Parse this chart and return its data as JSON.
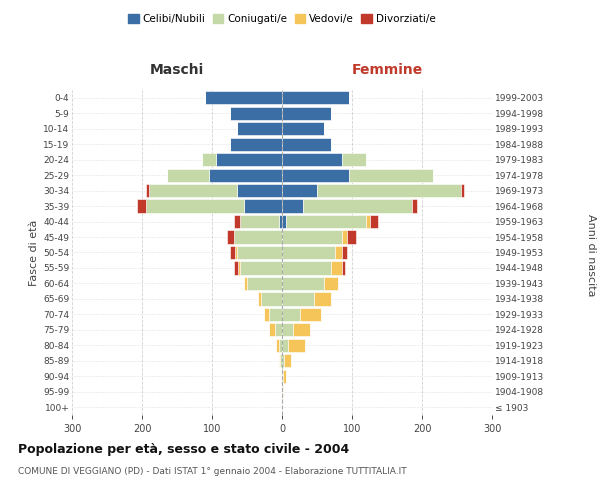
{
  "age_groups": [
    "100+",
    "95-99",
    "90-94",
    "85-89",
    "80-84",
    "75-79",
    "70-74",
    "65-69",
    "60-64",
    "55-59",
    "50-54",
    "45-49",
    "40-44",
    "35-39",
    "30-34",
    "25-29",
    "20-24",
    "15-19",
    "10-14",
    "5-9",
    "0-4"
  ],
  "birth_years": [
    "≤ 1903",
    "1904-1908",
    "1909-1913",
    "1914-1918",
    "1919-1923",
    "1924-1928",
    "1929-1933",
    "1934-1938",
    "1939-1943",
    "1944-1948",
    "1949-1953",
    "1954-1958",
    "1959-1963",
    "1964-1968",
    "1969-1973",
    "1974-1978",
    "1979-1983",
    "1984-1988",
    "1989-1993",
    "1994-1998",
    "1999-2003"
  ],
  "male": {
    "celibi": [
      0,
      0,
      0,
      0,
      0,
      0,
      0,
      0,
      0,
      0,
      0,
      0,
      5,
      55,
      65,
      105,
      95,
      75,
      65,
      75,
      110
    ],
    "coniugati": [
      0,
      0,
      1,
      3,
      5,
      10,
      18,
      30,
      50,
      60,
      65,
      68,
      55,
      140,
      125,
      60,
      20,
      0,
      0,
      0,
      0
    ],
    "vedovi": [
      0,
      0,
      0,
      1,
      4,
      8,
      8,
      4,
      4,
      3,
      2,
      0,
      0,
      0,
      0,
      0,
      0,
      0,
      0,
      0,
      0
    ],
    "divorziati": [
      0,
      0,
      0,
      0,
      0,
      0,
      0,
      0,
      0,
      5,
      8,
      10,
      8,
      12,
      5,
      0,
      0,
      0,
      0,
      0,
      0
    ]
  },
  "female": {
    "nubili": [
      0,
      0,
      0,
      0,
      0,
      0,
      0,
      0,
      0,
      0,
      0,
      0,
      5,
      30,
      50,
      95,
      85,
      70,
      60,
      70,
      95
    ],
    "coniugate": [
      0,
      0,
      1,
      3,
      8,
      15,
      25,
      45,
      60,
      70,
      75,
      85,
      115,
      155,
      205,
      120,
      35,
      0,
      0,
      0,
      0
    ],
    "vedove": [
      0,
      2,
      4,
      10,
      25,
      25,
      30,
      25,
      20,
      15,
      10,
      8,
      5,
      0,
      0,
      0,
      0,
      0,
      0,
      0,
      0
    ],
    "divorziate": [
      0,
      0,
      0,
      0,
      0,
      0,
      0,
      0,
      0,
      5,
      8,
      12,
      12,
      8,
      5,
      0,
      0,
      0,
      0,
      0,
      0
    ]
  },
  "colors": {
    "celibi": "#3b6ea5",
    "coniugati": "#c5d9a8",
    "vedovi": "#f5c55a",
    "divorziati": "#c0392b"
  },
  "xlim": 300,
  "title": "Popolazione per età, sesso e stato civile - 2004",
  "subtitle": "COMUNE DI VEGGIANO (PD) - Dati ISTAT 1° gennaio 2004 - Elaborazione TUTTITALIA.IT",
  "xlabel_left": "Maschi",
  "xlabel_right": "Femmine",
  "ylabel_left": "Fasce di età",
  "ylabel_right": "Anni di nascita",
  "bg_color": "#ffffff",
  "grid_color": "#cccccc",
  "femmine_color": "#c0392b",
  "maschi_color": "#333333",
  "text_color": "#444444"
}
